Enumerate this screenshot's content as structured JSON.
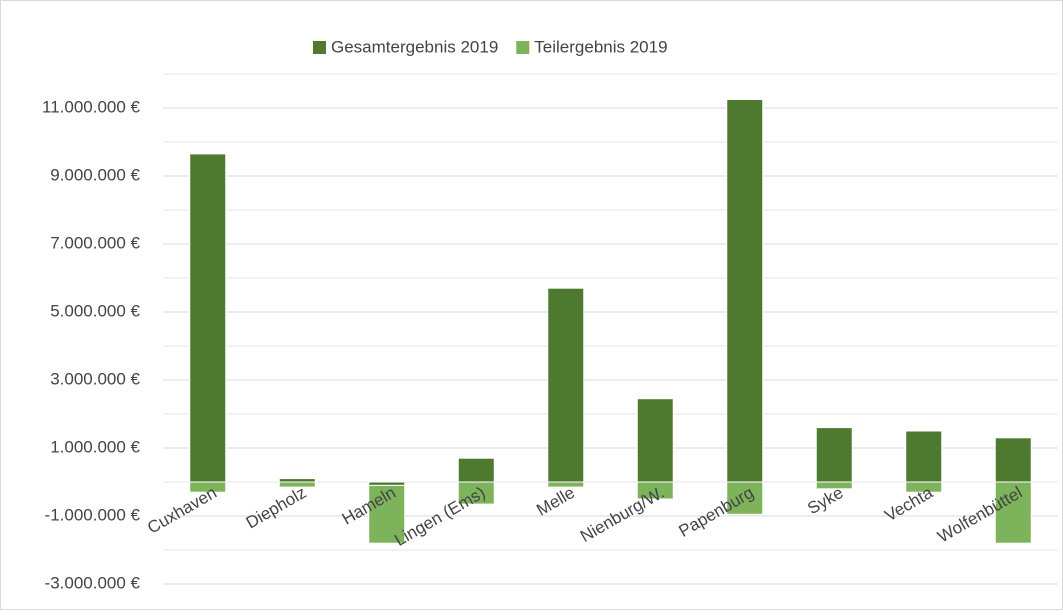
{
  "chart_data": {
    "type": "stacked_bar",
    "categories": [
      "Cuxhaven",
      "Diepholz",
      "Hameln",
      "Lingen (Ems)",
      "Melle",
      "Nienburg/W.",
      "Papenburg",
      "Syke",
      "Vechta",
      "Wolfenbüttel"
    ],
    "series": [
      {
        "name": "Gesamtergebnis 2019",
        "color": "#4e7a30",
        "values": [
          9650000,
          100000,
          -100000,
          700000,
          5700000,
          2450000,
          11250000,
          1600000,
          1500000,
          1300000
        ]
      },
      {
        "name": "Teilergebnis 2019",
        "color": "#7cb35b",
        "values": [
          -300000,
          -150000,
          -1700000,
          -650000,
          -150000,
          -500000,
          -950000,
          -200000,
          -300000,
          -1800000
        ]
      }
    ],
    "ylim": [
      -3000000,
      12000000
    ],
    "yticks": [
      {
        "value": -3000000,
        "label": "-3.000.000 €"
      },
      {
        "value": -1000000,
        "label": "-1.000.000 €"
      },
      {
        "value": 1000000,
        "label": "1.000.000 €"
      },
      {
        "value": 3000000,
        "label": "3.000.000 €"
      },
      {
        "value": 5000000,
        "label": "5.000.000 €"
      },
      {
        "value": 7000000,
        "label": "7.000.000 €"
      },
      {
        "value": 9000000,
        "label": "9.000.000 €"
      },
      {
        "value": 11000000,
        "label": "11.000.000 €"
      }
    ],
    "minor_gridlines": [
      -2000000,
      0,
      2000000,
      4000000,
      6000000,
      8000000,
      10000000,
      12000000
    ],
    "grid": true,
    "legend": "top"
  }
}
